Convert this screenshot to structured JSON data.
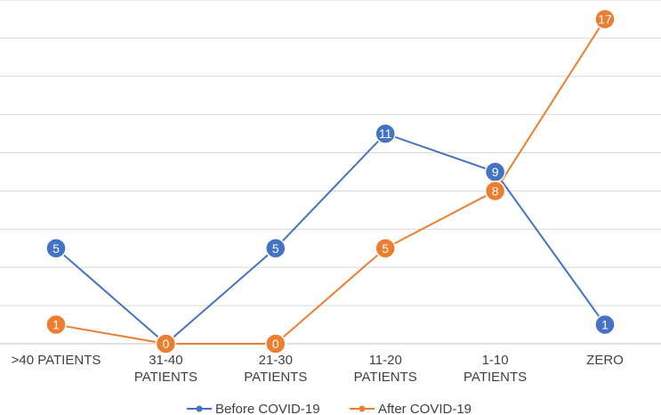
{
  "chart_data": {
    "type": "line",
    "categories": [
      ">40 PATIENTS",
      "31-40 PATIENTS",
      "21-30 PATIENTS",
      "11-20 PATIENTS",
      "1-10 PATIENTS",
      "ZERO"
    ],
    "category_lines": [
      [
        ">40 PATIENTS"
      ],
      [
        "31-40",
        "PATIENTS"
      ],
      [
        "21-30",
        "PATIENTS"
      ],
      [
        "11-20",
        "PATIENTS"
      ],
      [
        "1-10",
        "PATIENTS"
      ],
      [
        "ZERO"
      ]
    ],
    "series": [
      {
        "name": "Before COVID-19",
        "values": [
          5,
          0,
          5,
          11,
          9,
          1
        ],
        "color": "#4472C4"
      },
      {
        "name": "After COVID-19",
        "values": [
          1,
          0,
          0,
          5,
          8,
          17
        ],
        "color": "#ED7D31"
      }
    ],
    "ylim": [
      0,
      18
    ],
    "grid": true,
    "legend_position": "bottom"
  }
}
